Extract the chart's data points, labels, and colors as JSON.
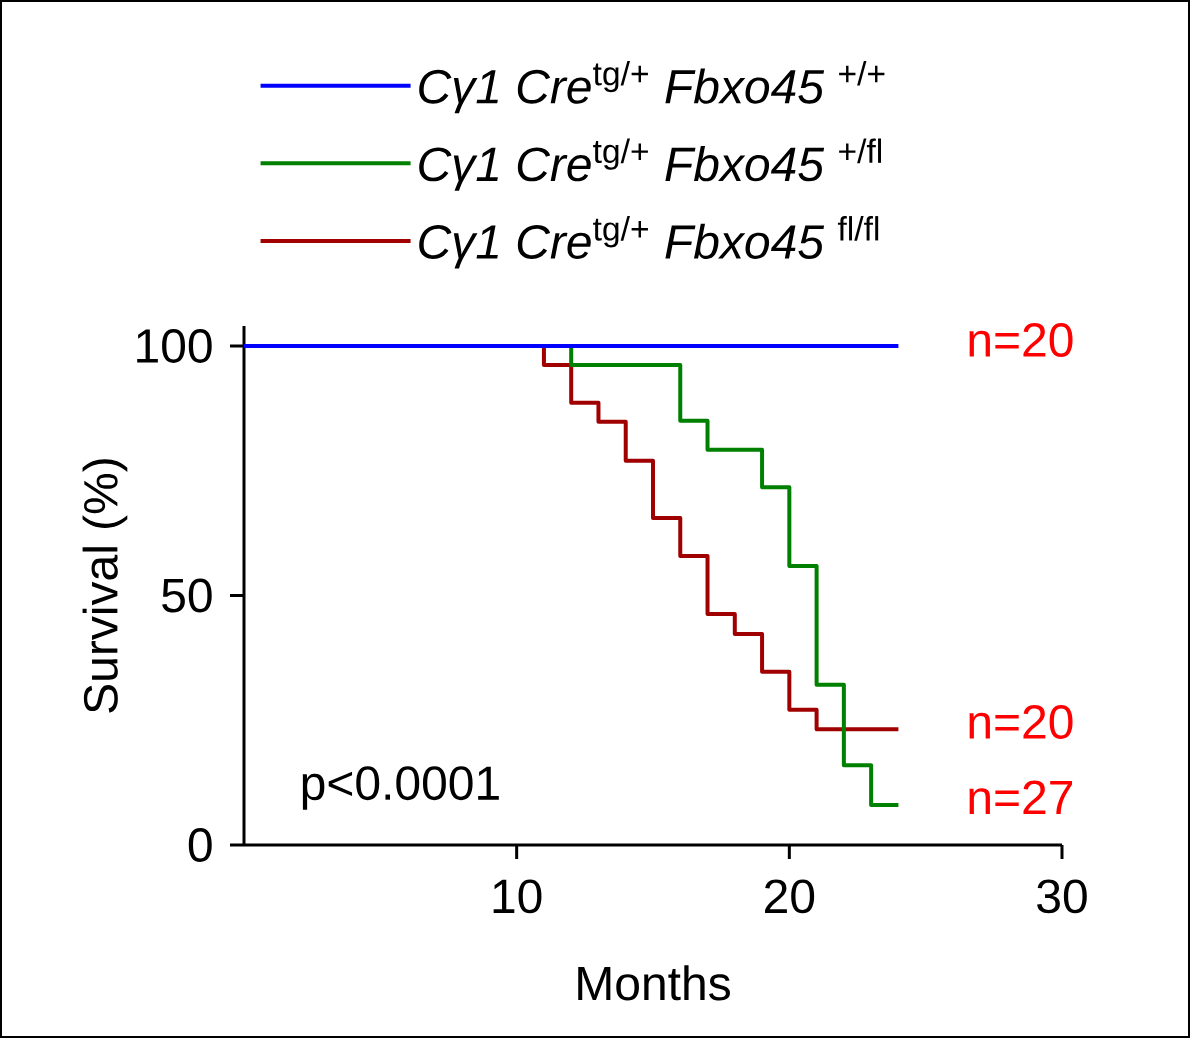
{
  "chart_data": {
    "type": "step",
    "xlabel": "Months",
    "ylabel": "Survival (%)",
    "xlim": [
      0,
      30
    ],
    "ylim": [
      0,
      104
    ],
    "xticks": [
      10,
      20,
      30
    ],
    "yticks": [
      0,
      50,
      100
    ],
    "grid": false,
    "legend": "top",
    "line_style": "solid",
    "marker": "none",
    "series": [
      {
        "name": "*Cγ1 Cre*$^{tg/+}$ *Fbxo45* $^{+/+}$",
        "color": "#0000ff",
        "x": [
          0,
          24
        ],
        "values": [
          100,
          100
        ]
      },
      {
        "name": "*Cγ1 Cre*$^{tg/+}$ *Fbxo45* $^{+/fl}$",
        "color": "#008000",
        "x": [
          0,
          12,
          16,
          17,
          19,
          20,
          21,
          22,
          23,
          24
        ],
        "values": [
          100,
          96.2,
          85,
          79.2,
          71.7,
          55.9,
          32.1,
          16,
          8,
          8
        ]
      },
      {
        "name": "*Cγ1 Cre*$^{tg/+}$ *Fbxo45* $^{fl/fl}$",
        "color": "#a00000",
        "x": [
          0,
          11,
          12,
          13,
          14,
          15,
          16,
          17,
          18,
          19,
          20,
          21,
          24
        ],
        "values": [
          100,
          96.2,
          88.6,
          84.8,
          77,
          65.5,
          57.9,
          46.3,
          42.3,
          34.7,
          27.1,
          23.2,
          23.2
        ]
      }
    ],
    "annotations": [
      "n=20",
      "n=20",
      "n=27",
      "p<0.0001"
    ]
  }
}
